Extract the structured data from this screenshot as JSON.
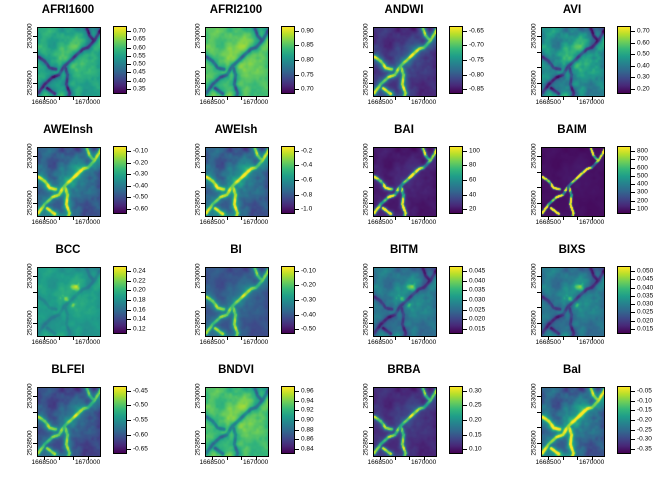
{
  "chart_data": {
    "type": "heatmap",
    "grid": {
      "rows": 4,
      "cols": 4
    },
    "colormap": "viridis",
    "colormap_stops": [
      "#440154",
      "#482878",
      "#3e4989",
      "#31688e",
      "#26828e",
      "#1f9e89",
      "#35b779",
      "#6ece58",
      "#b5de2b",
      "#fde725"
    ],
    "x_tick_labels": [
      "1668500",
      "1670000"
    ],
    "y_tick_labels": [
      "2530000",
      "2528500"
    ],
    "panels": [
      {
        "title": "AFRI1600",
        "colorbar_ticks": [
          "0.70",
          "0.65",
          "0.60",
          "0.55",
          "0.50",
          "0.45",
          "0.40",
          "0.35"
        ],
        "render": {
          "b": 0.62,
          "na": 0.2,
          "p": -1,
          "va": 0.5,
          "pw": 1,
          "vn": 0.2,
          "hl": 0
        }
      },
      {
        "title": "AFRI2100",
        "colorbar_ticks": [
          "0.90",
          "0.85",
          "0.80",
          "0.75",
          "0.70"
        ],
        "render": {
          "b": 0.74,
          "na": 0.16,
          "p": -1,
          "va": 0.45,
          "pw": 1,
          "vn": 0.2,
          "hl": 0
        }
      },
      {
        "title": "ANDWI",
        "colorbar_ticks": [
          "-0.65",
          "-0.70",
          "-0.75",
          "-0.80",
          "-0.85"
        ],
        "render": {
          "b": 0.16,
          "na": 0.14,
          "p": 1,
          "va": 0.75,
          "pw": 1,
          "vn": 0.3,
          "hl": 0
        }
      },
      {
        "title": "AVI",
        "colorbar_ticks": [
          "0.70",
          "0.60",
          "0.50",
          "0.40",
          "0.30",
          "0.20"
        ],
        "render": {
          "b": 0.52,
          "na": 0.3,
          "p": -1,
          "va": 0.4,
          "pw": 1,
          "vn": 0.2,
          "hl": 0
        }
      },
      {
        "title": "AWEInsh",
        "colorbar_ticks": [
          "-0.10",
          "-0.20",
          "-0.30",
          "-0.40",
          "-0.50",
          "-0.60"
        ],
        "render": {
          "b": 0.33,
          "na": 0.24,
          "p": 1,
          "va": 0.6,
          "pw": 1,
          "vn": 0.3,
          "hl": 0
        }
      },
      {
        "title": "AWEIsh",
        "colorbar_ticks": [
          "-0.2",
          "-0.4",
          "-0.6",
          "-0.8",
          "-1.0"
        ],
        "render": {
          "b": 0.33,
          "na": 0.24,
          "p": 1,
          "va": 0.6,
          "pw": 1,
          "vn": 0.3,
          "hl": 0
        }
      },
      {
        "title": "BAI",
        "colorbar_ticks": [
          "100",
          "80",
          "60",
          "40",
          "20"
        ],
        "render": {
          "b": 0.08,
          "na": 0.07,
          "p": 1,
          "va": 1.0,
          "pw": 2,
          "vn": 0.75,
          "hl": 0
        }
      },
      {
        "title": "BAIM",
        "colorbar_ticks": [
          "800",
          "700",
          "600",
          "500",
          "400",
          "300",
          "200",
          "100"
        ],
        "render": {
          "b": 0.045,
          "na": 0.035,
          "p": 1,
          "va": 1.3,
          "pw": 5,
          "vn": 0.9,
          "hl": 0
        }
      },
      {
        "title": "BCC",
        "colorbar_ticks": [
          "0.24",
          "0.22",
          "0.20",
          "0.18",
          "0.16",
          "0.14",
          "0.12"
        ],
        "render": {
          "b": 0.56,
          "na": 0.13,
          "p": -1,
          "va": 0.12,
          "pw": 1,
          "vn": 0.0,
          "hl": 1
        }
      },
      {
        "title": "BI",
        "colorbar_ticks": [
          "-0.10",
          "-0.20",
          "-0.30",
          "-0.40",
          "-0.50"
        ],
        "render": {
          "b": 0.28,
          "na": 0.13,
          "p": 1,
          "va": 0.55,
          "pw": 1,
          "vn": 0.3,
          "hl": 0
        }
      },
      {
        "title": "BITM",
        "colorbar_ticks": [
          "0.045",
          "0.040",
          "0.035",
          "0.030",
          "0.025",
          "0.020",
          "0.015"
        ],
        "render": {
          "b": 0.42,
          "na": 0.2,
          "p": -1,
          "va": 0.3,
          "pw": 1,
          "vn": 0.2,
          "hl": 1
        }
      },
      {
        "title": "BIXS",
        "colorbar_ticks": [
          "0.050",
          "0.045",
          "0.040",
          "0.035",
          "0.030",
          "0.025",
          "0.020",
          "0.015"
        ],
        "render": {
          "b": 0.42,
          "na": 0.2,
          "p": -1,
          "va": 0.3,
          "pw": 1,
          "vn": 0.2,
          "hl": 1
        }
      },
      {
        "title": "BLFEI",
        "colorbar_ticks": [
          "-0.45",
          "-0.50",
          "-0.55",
          "-0.60",
          "-0.65"
        ],
        "render": {
          "b": 0.26,
          "na": 0.2,
          "p": 1,
          "va": 0.55,
          "pw": 1,
          "vn": 0.3,
          "hl": 0
        }
      },
      {
        "title": "BNDVI",
        "colorbar_ticks": [
          "0.96",
          "0.94",
          "0.92",
          "0.90",
          "0.88",
          "0.86",
          "0.84"
        ],
        "render": {
          "b": 0.72,
          "na": 0.18,
          "p": -1,
          "va": 0.35,
          "pw": 1,
          "vn": 0.2,
          "hl": 0
        }
      },
      {
        "title": "BRBA",
        "colorbar_ticks": [
          "0.30",
          "0.25",
          "0.20",
          "0.15",
          "0.10"
        ],
        "render": {
          "b": 0.14,
          "na": 0.11,
          "p": 1,
          "va": 0.7,
          "pw": 1.5,
          "vn": 0.4,
          "hl": 0
        }
      },
      {
        "title": "BaI",
        "colorbar_ticks": [
          "-0.05",
          "-0.10",
          "-0.15",
          "-0.20",
          "-0.25",
          "-0.30",
          "-0.35"
        ],
        "render": {
          "b": 0.34,
          "na": 0.26,
          "p": 1,
          "va": 0.65,
          "pw": 1,
          "vn": 0.25,
          "hl": 0
        }
      }
    ]
  }
}
